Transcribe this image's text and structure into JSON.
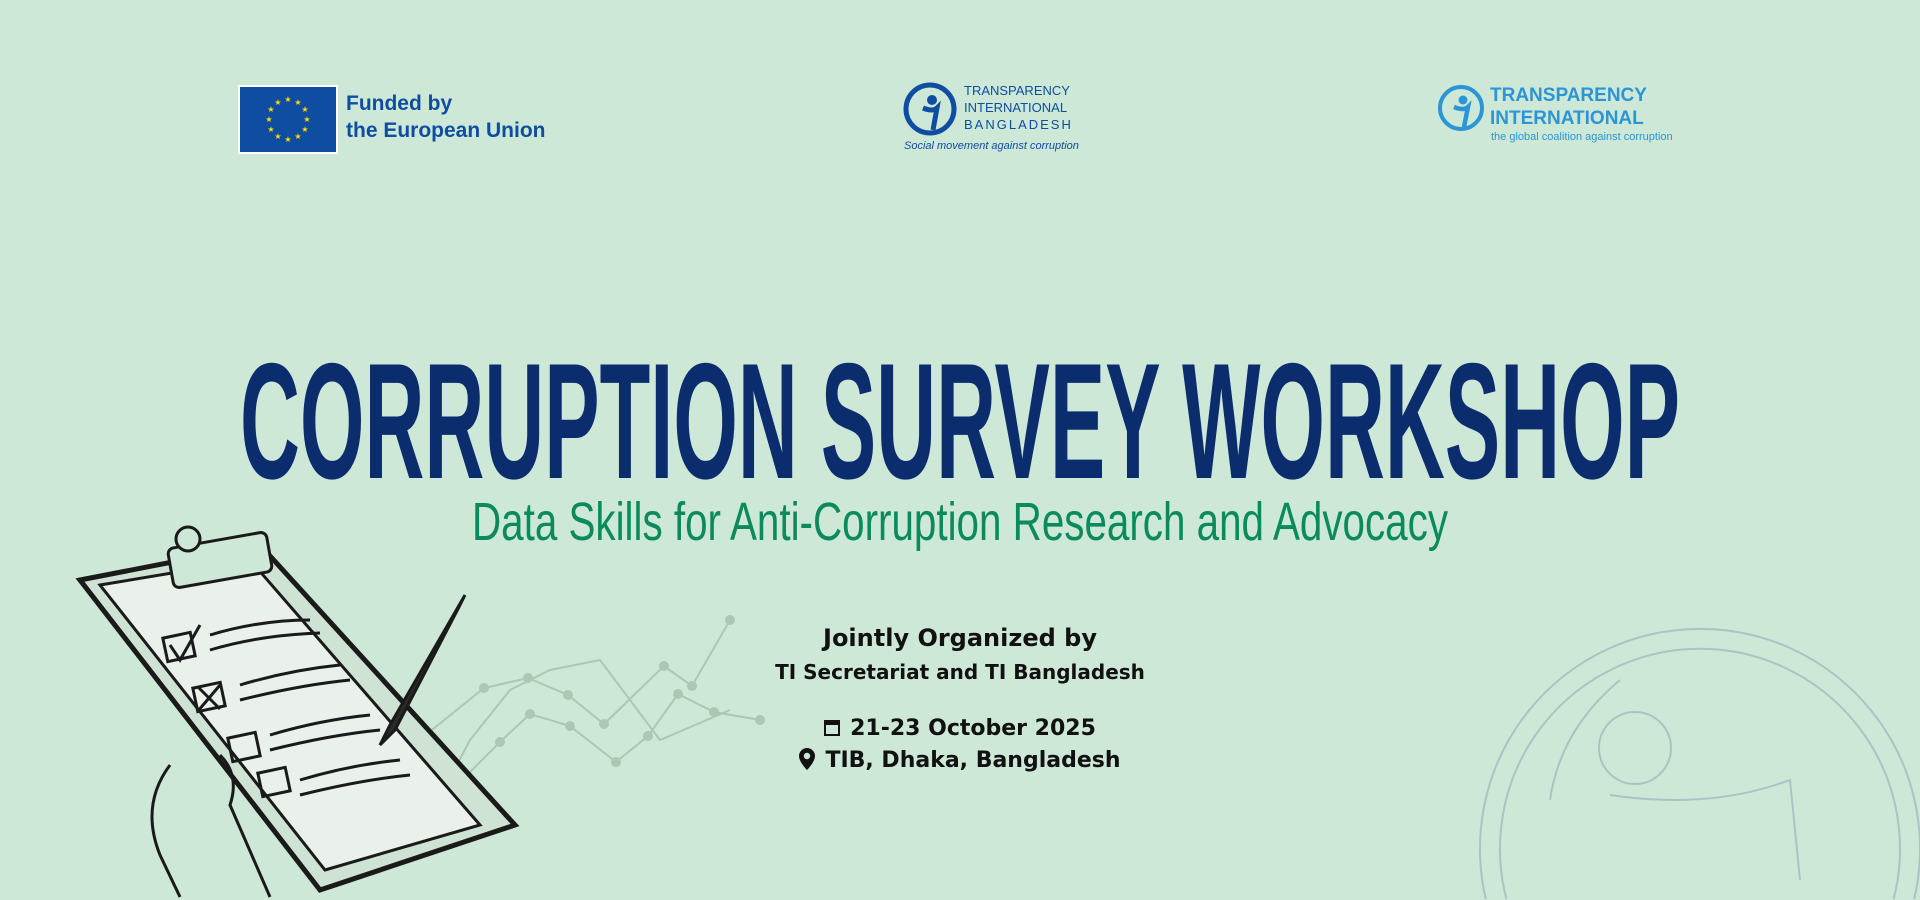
{
  "logos": {
    "eu": {
      "line1": "Funded by",
      "line2": "the European Union"
    },
    "tib": {
      "line1": "TRANSPARENCY",
      "line2": "INTERNATIONAL",
      "line3": "BANGLADESH",
      "tagline": "Social movement against corruption"
    },
    "ti": {
      "line1": "TRANSPARENCY",
      "line2": "INTERNATIONAL",
      "tagline": "the global coalition against corruption"
    }
  },
  "title": "CORRUPTION SURVEY WORKSHOP",
  "subtitle": "Data Skills for Anti-Corruption Research and Advocacy",
  "organizer": {
    "heading": "Jointly Organized by",
    "names": "TI Secretariat and TI Bangladesh"
  },
  "event": {
    "date": "21-23 October 2025",
    "date_icon": "calendar-icon",
    "location": "TIB, Dhaka, Bangladesh",
    "location_icon": "map-pin-icon"
  },
  "colors": {
    "background": "#cde8d6",
    "title": "#0b2d6e",
    "subtitle": "#0b8a5e",
    "eu_blue": "#0f4da2",
    "ti_blue": "#2b95d6"
  }
}
